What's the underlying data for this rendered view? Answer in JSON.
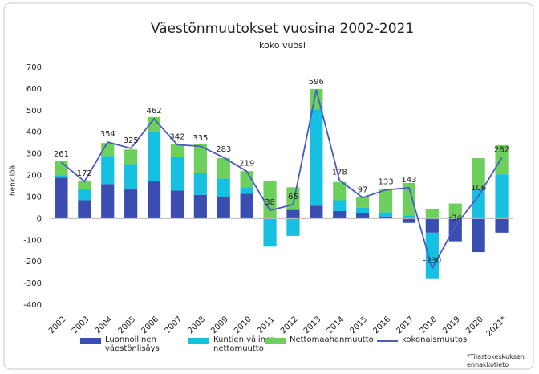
{
  "chart_data": {
    "type": "stacked_bar_line",
    "title": "Väestönmuutokset vuosina 2002-2021",
    "subtitle": "koko vuosi",
    "y_label": "henkilöä",
    "note": "*Tilastokeskuksen ennakkotieto",
    "categories": [
      "2002",
      "2003",
      "2004",
      "2005",
      "2006",
      "2007",
      "2008",
      "2009",
      "2010",
      "2011",
      "2012",
      "2013",
      "2014",
      "2015",
      "2016",
      "2017",
      "2018",
      "2019",
      "2020",
      "2021*"
    ],
    "series": [
      {
        "name": "Luonnollinen väestönlisäys",
        "type": "bar",
        "color": "#3b4db0",
        "values": [
          190,
          85,
          160,
          135,
          175,
          130,
          110,
          100,
          115,
          0,
          40,
          60,
          35,
          25,
          10,
          -20,
          -65,
          -105,
          -155,
          -65
        ]
      },
      {
        "name": "Kuntien välinen nettomuutto",
        "type": "bar",
        "color": "#16c0e0",
        "values": [
          10,
          50,
          130,
          117,
          225,
          155,
          100,
          85,
          30,
          -130,
          -80,
          445,
          50,
          25,
          20,
          15,
          -215,
          0,
          135,
          205
        ]
      },
      {
        "name": "Nettomaahanmuutto",
        "type": "bar",
        "color": "#6dd05c",
        "values": [
          65,
          40,
          60,
          68,
          70,
          60,
          135,
          95,
          75,
          175,
          105,
          95,
          85,
          50,
          105,
          150,
          45,
          70,
          145,
          135
        ]
      },
      {
        "name": "kokonaismuutos",
        "type": "line",
        "color": "#4a5bc4",
        "values": [
          261,
          172,
          354,
          325,
          462,
          342,
          335,
          283,
          219,
          38,
          65,
          596,
          178,
          97,
          133,
          143,
          -230,
          -34,
          106,
          282
        ]
      }
    ],
    "ylim": [
      -400,
      700
    ],
    "yticks": [
      -400,
      -300,
      -200,
      -100,
      0,
      100,
      200,
      300,
      400,
      500,
      600,
      700
    ],
    "grid": false,
    "legend": "bottom"
  }
}
